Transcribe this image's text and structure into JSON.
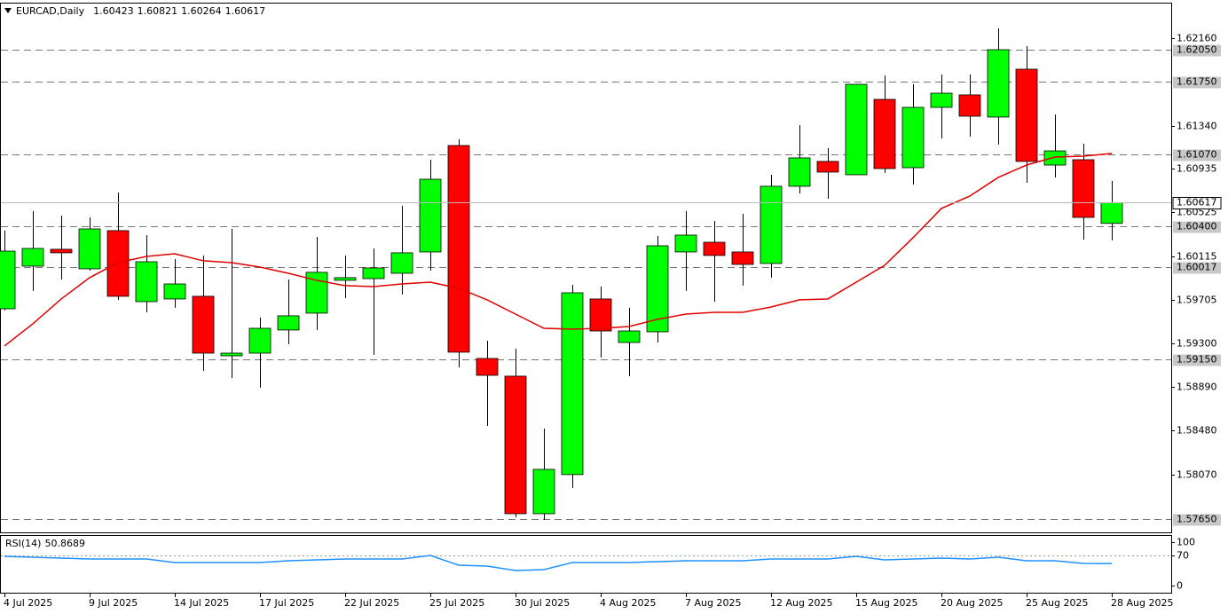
{
  "chart_data": [
    {
      "type": "candlestick",
      "title": "EURCAD,Daily",
      "categories": [
        "4 Jul 2025",
        null,
        null,
        "9 Jul 2025",
        null,
        null,
        "14 Jul 2025",
        null,
        null,
        "17 Jul 2025",
        null,
        null,
        "22 Jul 2025",
        null,
        null,
        "25 Jul 2025",
        null,
        null,
        "30 Jul 2025",
        null,
        null,
        "4 Aug 2025",
        null,
        null,
        "7 Aug 2025",
        null,
        null,
        "12 Aug 2025",
        null,
        null,
        "15 Aug 2025",
        null,
        null,
        "20 Aug 2025",
        null,
        null,
        "25 Aug 2025",
        null,
        null,
        "28 Aug 2025"
      ],
      "open": [
        1.59622,
        1.60022,
        1.6018,
        1.59997,
        1.60355,
        1.59689,
        1.59714,
        1.59739,
        1.59181,
        1.59206,
        1.59423,
        1.59581,
        1.59889,
        1.59905,
        1.59955,
        1.60155,
        1.61153,
        1.59156,
        1.5899,
        1.577,
        1.58067,
        1.59714,
        1.59306,
        1.59406,
        1.60155,
        1.60246,
        1.60155,
        1.60047,
        1.60771,
        1.61004,
        1.60879,
        1.61586,
        1.60945,
        1.61511,
        1.61628,
        1.6142,
        1.61869,
        1.6097,
        1.6102,
        1.60423
      ],
      "high": [
        1.60355,
        1.60538,
        1.60496,
        1.60479,
        1.60712,
        1.60313,
        1.60088,
        1.60122,
        1.60371,
        1.59539,
        1.59897,
        1.60296,
        1.60122,
        1.60188,
        1.60588,
        1.6102,
        1.61212,
        1.59323,
        1.59248,
        1.58499,
        1.59847,
        1.5983,
        1.59631,
        1.60305,
        1.60538,
        1.60446,
        1.60513,
        1.60879,
        1.61345,
        1.61128,
        1.6173,
        1.61811,
        1.61727,
        1.61819,
        1.61819,
        1.62252,
        1.62085,
        1.61444,
        1.6117,
        1.60821
      ],
      "low": [
        1.59606,
        1.59789,
        1.59897,
        1.5998,
        1.59706,
        1.59589,
        1.59631,
        1.5904,
        1.58973,
        1.58882,
        1.5929,
        1.59423,
        1.59722,
        1.5919,
        1.59756,
        1.5998,
        1.59073,
        1.58524,
        1.57667,
        1.57642,
        1.57942,
        1.59165,
        1.5899,
        1.59306,
        1.59789,
        1.59689,
        1.59839,
        1.59914,
        1.60704,
        1.60654,
        1.60879,
        1.60895,
        1.60787,
        1.6122,
        1.61236,
        1.61162,
        1.60804,
        1.60854,
        1.60271,
        1.60264
      ],
      "close": [
        1.60163,
        1.60188,
        1.60147,
        1.60371,
        1.59739,
        1.60063,
        1.59855,
        1.59206,
        1.59206,
        1.59439,
        1.59556,
        1.59964,
        1.59914,
        1.60005,
        1.60147,
        1.60837,
        1.59215,
        1.58998,
        1.577,
        1.58116,
        1.59772,
        1.59414,
        1.59414,
        1.60213,
        1.60313,
        1.60122,
        1.60038,
        1.60771,
        1.61037,
        1.60904,
        1.61727,
        1.60937,
        1.61511,
        1.61644,
        1.61428,
        1.62052,
        1.61004,
        1.61103,
        1.60479,
        1.60617
      ],
      "up_color": "#00ff00",
      "down_color": "#ff0000",
      "ma": {
        "color": "#e00000",
        "values": [
          1.59273,
          1.59481,
          1.59714,
          1.59914,
          1.60055,
          1.60113,
          1.60138,
          1.60072,
          1.60055,
          1.60013,
          1.59955,
          1.59889,
          1.59839,
          1.5983,
          1.59855,
          1.59872,
          1.59814,
          1.59706,
          1.59572,
          1.59439,
          1.59431,
          1.59439,
          1.59456,
          1.59523,
          1.59572,
          1.59589,
          1.59589,
          1.59639,
          1.59706,
          1.59714,
          1.59872,
          1.6003,
          1.60288,
          1.60563,
          1.60679,
          1.60854,
          1.6097,
          1.61045,
          1.61053,
          1.61078
        ]
      },
      "ylim": [
        1.57525,
        1.62493
      ],
      "yticks": [
        {
          "value": 1.6216,
          "label": "1.62160"
        },
        {
          "value": 1.6134,
          "label": "1.61340"
        },
        1.60935,
        1.60525,
        1.60115,
        1.59705,
        {
          "value": 1.593,
          "label": "1.59300"
        },
        {
          "value": 1.5889,
          "label": "1.58890"
        },
        {
          "value": 1.5848,
          "label": "1.58480"
        },
        {
          "value": 1.5807,
          "label": "1.58070"
        }
      ],
      "levels": [
        {
          "value": 1.6205,
          "label": "1.62050"
        },
        {
          "value": 1.6175,
          "label": "1.61750"
        },
        {
          "value": 1.6107,
          "label": "1.61070"
        },
        {
          "value": 1.604,
          "label": "1.60400"
        },
        1.60017,
        {
          "value": 1.5915,
          "label": "1.59150"
        },
        {
          "value": 1.5765,
          "label": "1.57650"
        }
      ]
    },
    {
      "type": "line",
      "title": "RSI(14)",
      "values": [
        67.3,
        65.3,
        63.3,
        61.2,
        61.2,
        61.2,
        53.1,
        53.1,
        53.1,
        53.1,
        57.1,
        59.2,
        61.2,
        61.2,
        61.2,
        69.4,
        46.9,
        44.9,
        34.7,
        36.7,
        53.1,
        53.1,
        53.1,
        55.1,
        57.1,
        57.1,
        57.1,
        61.2,
        61.2,
        61.2,
        67.3,
        59.2,
        61.2,
        63.3,
        61.2,
        65.3,
        57.1,
        57.1,
        51.0,
        50.8689
      ],
      "color": "#1e90ff",
      "ylim": [
        -16.3,
        116.3
      ],
      "yticks": [
        100,
        70,
        0
      ],
      "levels": [
        70
      ]
    }
  ]
}
